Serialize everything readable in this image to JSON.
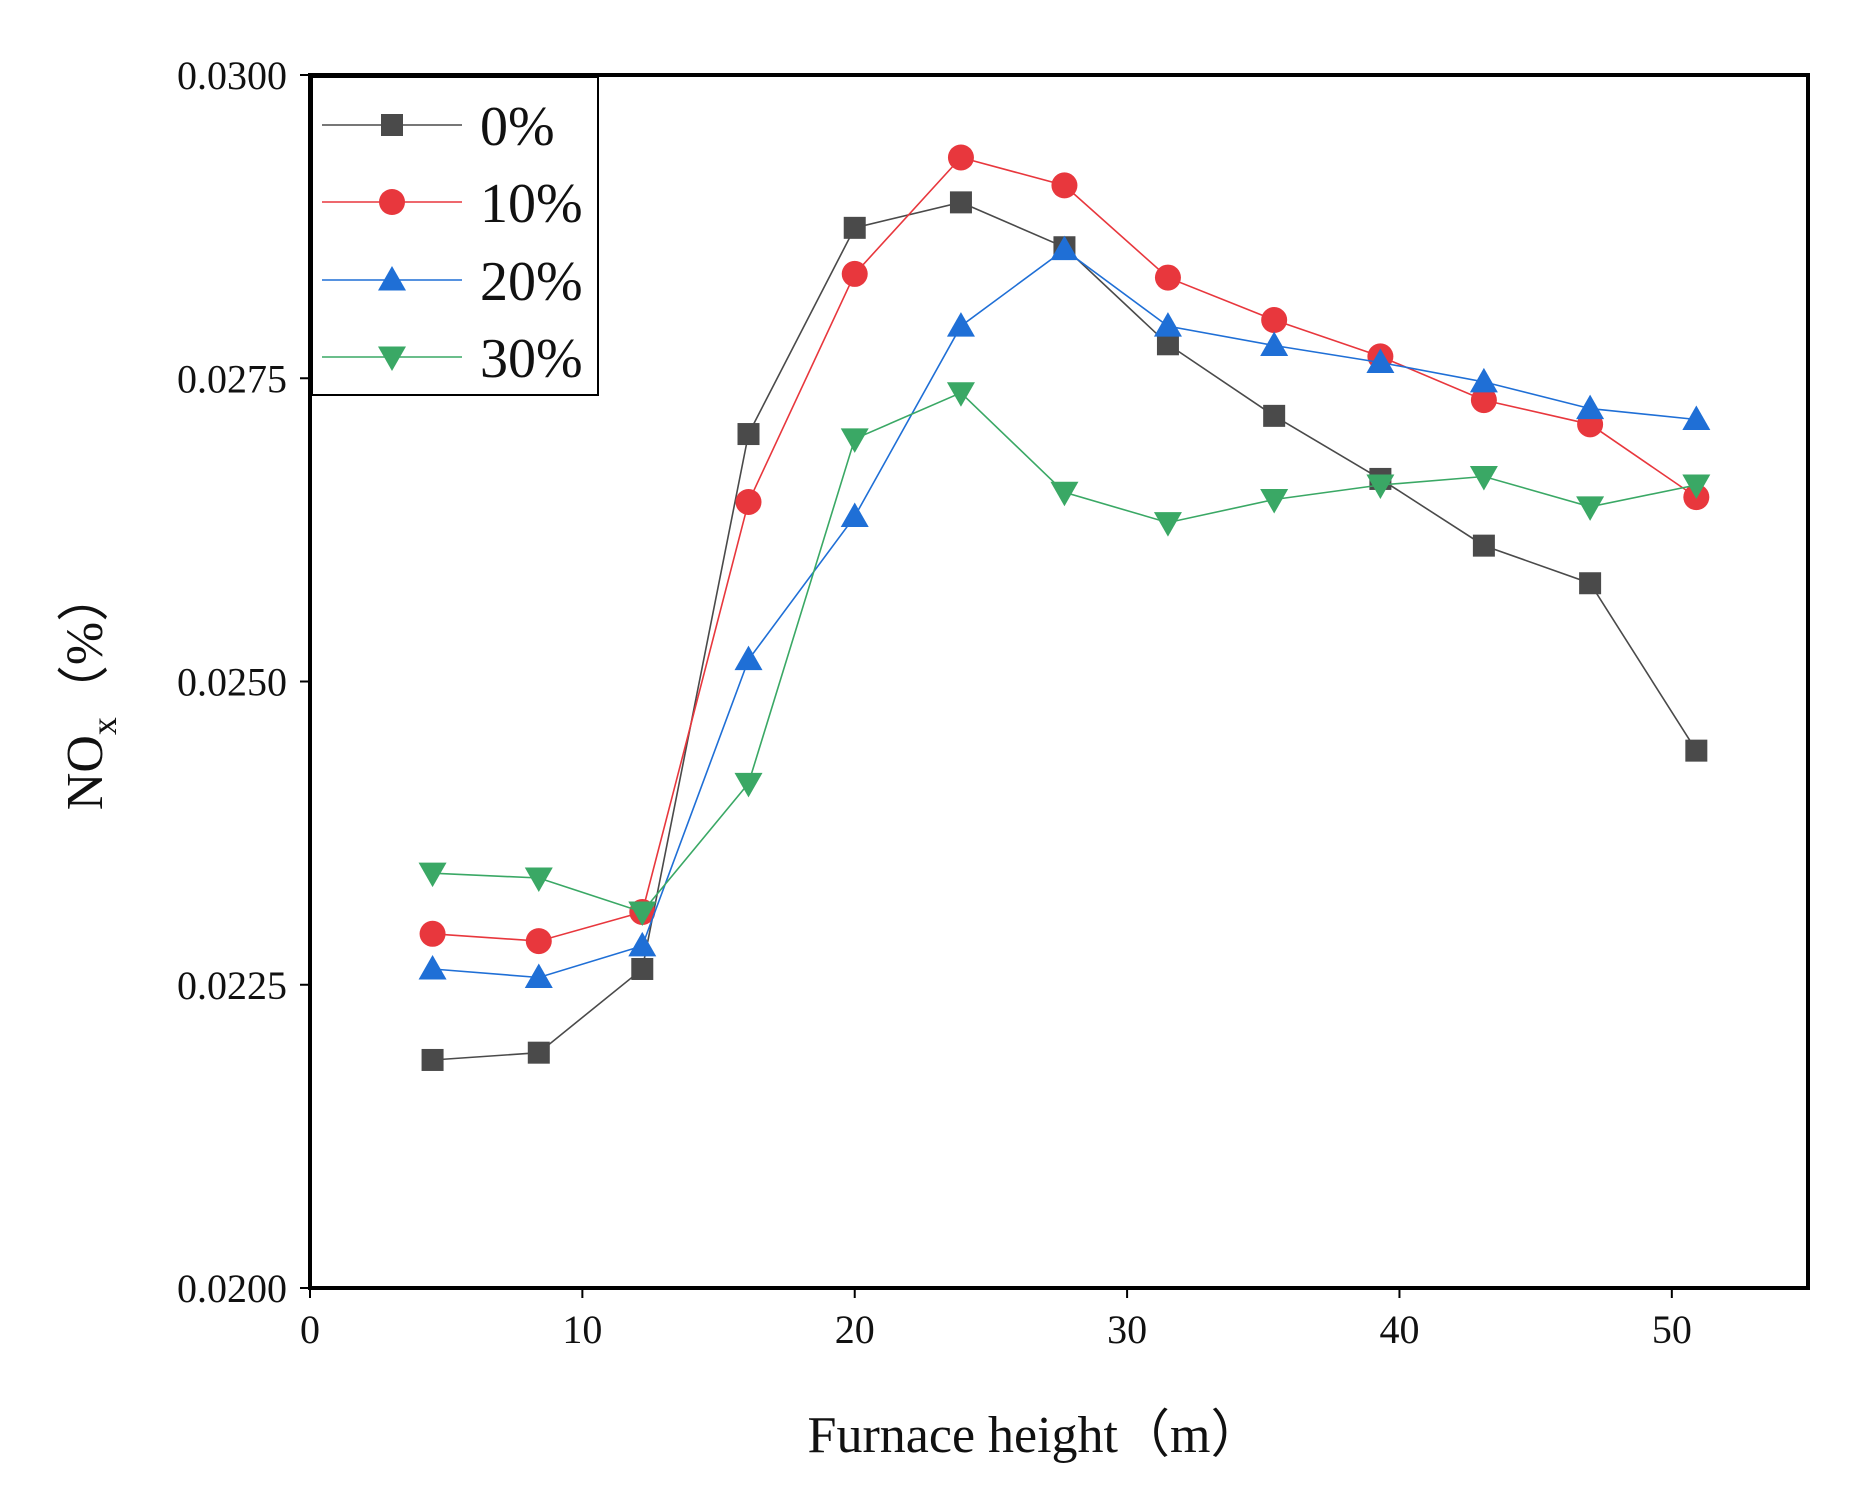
{
  "chart_data": {
    "type": "line",
    "xlabel": "Furnace height（m）",
    "ylabel_main": "NO",
    "ylabel_sub": "x",
    "ylabel_unit": "（%）",
    "xlim": [
      0,
      55
    ],
    "ylim": [
      0.02,
      0.03
    ],
    "xticks": [
      "0",
      "10",
      "20",
      "30",
      "40",
      "50"
    ],
    "yticks": [
      "0.0200",
      "0.0225",
      "0.0250",
      "0.0275",
      "0.0300"
    ],
    "legend_position": "top-left",
    "x": [
      4.5,
      8.4,
      12.2,
      16.1,
      20.0,
      23.9,
      27.7,
      31.5,
      35.4,
      39.3,
      43.1,
      47.0,
      50.9
    ],
    "series": [
      {
        "name": "0%",
        "marker": "square",
        "color": "#4a4a4a",
        "values": [
          0.02188,
          0.02194,
          0.02263,
          0.02704,
          0.02874,
          0.02895,
          0.02858,
          0.02778,
          0.02719,
          0.02667,
          0.02612,
          0.02581,
          0.02443
        ]
      },
      {
        "name": "10%",
        "marker": "circle",
        "color": "#e8373d",
        "values": [
          0.02292,
          0.02286,
          0.0231,
          0.02648,
          0.02836,
          0.02932,
          0.02909,
          0.02833,
          0.02798,
          0.02768,
          0.02732,
          0.02712,
          0.02652
        ]
      },
      {
        "name": "20%",
        "marker": "triangle-up",
        "color": "#1f6fd6",
        "values": [
          0.02263,
          0.02256,
          0.02282,
          0.02518,
          0.02636,
          0.02793,
          0.02856,
          0.02793,
          0.02777,
          0.02763,
          0.02747,
          0.02725,
          0.02716
        ]
      },
      {
        "name": "30%",
        "marker": "triangle-down",
        "color": "#3aa865",
        "values": [
          0.02342,
          0.02338,
          0.0231,
          0.02416,
          0.027,
          0.02738,
          0.02656,
          0.02631,
          0.0265,
          0.02662,
          0.02669,
          0.02644,
          0.02662
        ]
      }
    ]
  }
}
